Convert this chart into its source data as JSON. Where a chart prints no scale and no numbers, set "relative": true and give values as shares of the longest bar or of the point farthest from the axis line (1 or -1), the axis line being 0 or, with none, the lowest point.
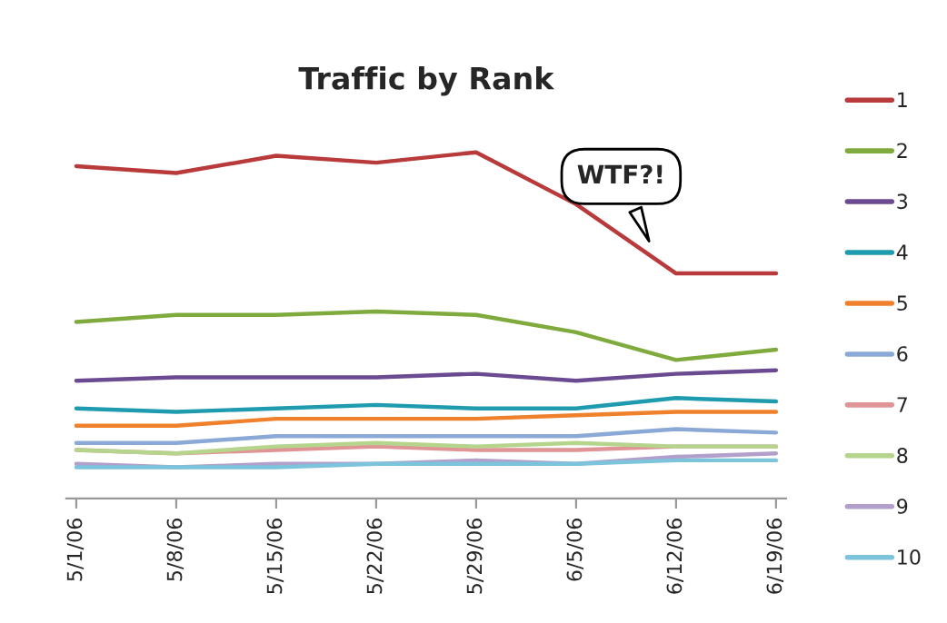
{
  "chart_data": {
    "type": "line",
    "title": "Traffic by Rank",
    "relative": true,
    "categories": [
      "5/1/06",
      "5/8/06",
      "5/15/06",
      "5/22/06",
      "5/29/06",
      "6/5/06",
      "6/12/06",
      "6/19/06"
    ],
    "series": [
      {
        "name": "1",
        "color": "#b83a3a",
        "values": [
          0.96,
          0.94,
          0.99,
          0.97,
          1.0,
          0.85,
          0.65,
          0.65
        ]
      },
      {
        "name": "2",
        "color": "#7fab3e",
        "values": [
          0.51,
          0.53,
          0.53,
          0.54,
          0.53,
          0.48,
          0.4,
          0.43
        ]
      },
      {
        "name": "3",
        "color": "#6b4a92",
        "values": [
          0.34,
          0.35,
          0.35,
          0.35,
          0.36,
          0.34,
          0.36,
          0.37
        ]
      },
      {
        "name": "4",
        "color": "#1f9bb0",
        "values": [
          0.26,
          0.25,
          0.26,
          0.27,
          0.26,
          0.26,
          0.29,
          0.28
        ]
      },
      {
        "name": "5",
        "color": "#f0812c",
        "values": [
          0.21,
          0.21,
          0.23,
          0.23,
          0.23,
          0.24,
          0.25,
          0.25
        ]
      },
      {
        "name": "6",
        "color": "#8aa9d6",
        "values": [
          0.16,
          0.16,
          0.18,
          0.18,
          0.18,
          0.18,
          0.2,
          0.19
        ]
      },
      {
        "name": "7",
        "color": "#e09495",
        "values": [
          0.14,
          0.13,
          0.14,
          0.15,
          0.14,
          0.14,
          0.15,
          0.15
        ]
      },
      {
        "name": "8",
        "color": "#b5d48c",
        "values": [
          0.14,
          0.13,
          0.15,
          0.16,
          0.15,
          0.16,
          0.15,
          0.15
        ]
      },
      {
        "name": "9",
        "color": "#b39fcb",
        "values": [
          0.1,
          0.09,
          0.1,
          0.1,
          0.11,
          0.1,
          0.12,
          0.13
        ]
      },
      {
        "name": "10",
        "color": "#7cc4dc",
        "values": [
          0.09,
          0.09,
          0.09,
          0.1,
          0.1,
          0.1,
          0.11,
          0.11
        ]
      }
    ],
    "annotations": [
      "WTF?!"
    ],
    "legend": "right",
    "grid": false,
    "marker": "none",
    "line_style": "solid"
  }
}
